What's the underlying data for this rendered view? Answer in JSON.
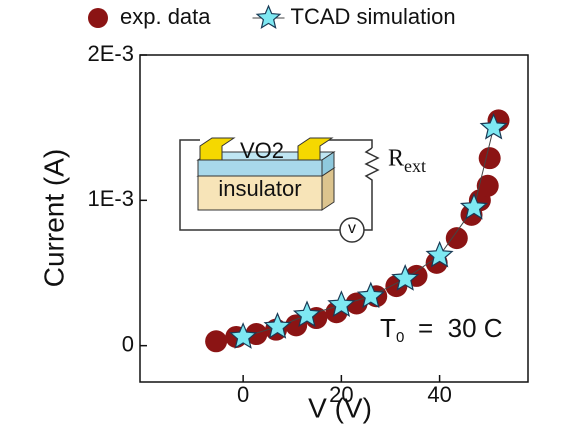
{
  "chart_data": {
    "type": "scatter",
    "xlabel": "V (V)",
    "ylabel": "Current (A)",
    "xlim": [
      -21,
      58
    ],
    "ylim": [
      -0.00025,
      0.002
    ],
    "xticks": [
      0,
      20,
      40
    ],
    "yticks": [
      0,
      {
        "value": 0.001,
        "label": "1E-3"
      },
      {
        "value": 0.002,
        "label": "2E-3"
      }
    ],
    "legend": "top",
    "series": [
      {
        "name": "exp. data",
        "color": "#8b1414",
        "marker": "circle",
        "x": [
          -5.5,
          -1.4,
          2.7,
          6.7,
          10.8,
          14.9,
          19,
          23.1,
          27.1,
          31.2,
          35.3,
          39.4,
          43.5,
          46.5,
          48.2,
          49.8,
          50.2,
          52
        ],
        "values": [
          3e-05,
          6e-05,
          8e-05,
          0.00011,
          0.00014,
          0.00019,
          0.00023,
          0.00029,
          0.00034,
          0.00041,
          0.00048,
          0.00057,
          0.00074,
          0.0009,
          0.001,
          0.0011,
          0.00129,
          0.00155
        ]
      },
      {
        "name": "TCAD simulation",
        "color": "#7ee8f2",
        "marker": "star",
        "line": true,
        "x": [
          0,
          7,
          13,
          20,
          26,
          33,
          40,
          47,
          51
        ],
        "values": [
          6e-05,
          0.00013,
          0.00021,
          0.00028,
          0.00034,
          0.00046,
          0.00062,
          0.00095,
          0.0015
        ]
      }
    ],
    "annotation": {
      "symbol": "T",
      "subscript": "0",
      "text": "=  30 C"
    },
    "inset": {
      "layer": "VO2",
      "substrate": "insulator",
      "resistor": "R",
      "resistor_subscript": "ext",
      "meter": "v"
    }
  }
}
